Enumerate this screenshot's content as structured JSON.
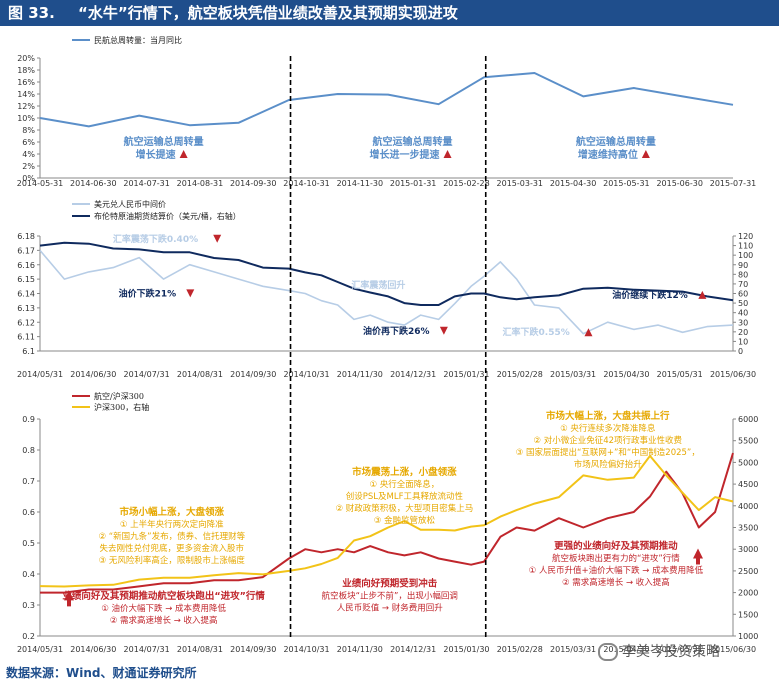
{
  "figure": {
    "number": "图 33.",
    "title": "“水牛”行情下，航空板块凭借业绩改善及其预期实现进攻",
    "source": "数据来源：Wind、财通证券研究所",
    "watermark": "李美岑投资策略"
  },
  "colors": {
    "title_bg": "#1f4e8c",
    "panel1_line": "#5b8fc9",
    "usdcny": "#b7cde6",
    "brent": "#0f2a5e",
    "airline_ratio": "#c0262c",
    "hs300": "#f2c318",
    "annotation_blue": "#5b8fc9",
    "annotation_red": "#c0262c",
    "annotation_gold": "#e6a800",
    "divider": "#000000"
  },
  "dividers": [
    "2014-11-01",
    "2015-03-01"
  ],
  "chart_data": [
    {
      "type": "line",
      "legend": [
        "民航总周转量：当月同比"
      ],
      "xlim": [
        "2014-05-31",
        "2015-07-31"
      ],
      "x_ticks": [
        "2014-05-31",
        "2014-06-30",
        "2014-07-31",
        "2014-08-31",
        "2014-09-30",
        "2014-10-31",
        "2014-11-30",
        "2015-01-31",
        "2015-02-28",
        "2015-03-31",
        "2015-04-30",
        "2015-05-31",
        "2015-06-30",
        "2015-07-31"
      ],
      "ylim": [
        0,
        20
      ],
      "y_ticks": [
        "0%",
        "2%",
        "4%",
        "6%",
        "8%",
        "10%",
        "12%",
        "14%",
        "16%",
        "18%",
        "20%"
      ],
      "series": [
        {
          "name": "民航总周转量：当月同比",
          "x": [
            "2014-05-31",
            "2014-06-30",
            "2014-07-31",
            "2014-08-31",
            "2014-09-30",
            "2014-10-31",
            "2014-11-30",
            "2014-12-31",
            "2015-01-31",
            "2015-02-28",
            "2015-03-31",
            "2015-04-30",
            "2015-05-31",
            "2015-06-30",
            "2015-07-31"
          ],
          "values": [
            10.0,
            8.6,
            10.4,
            8.8,
            9.2,
            13.0,
            14.0,
            13.9,
            12.3,
            16.8,
            17.5,
            13.6,
            15.0,
            13.6,
            12.2
          ]
        }
      ],
      "annotations": [
        {
          "text": "航空运输总周转量",
          "text2": "增长提速",
          "x": "2014-08-15",
          "y": 5.5
        },
        {
          "text": "航空运输总周转量",
          "text2": "增长进一步提速",
          "x": "2015-01-15",
          "y": 5.5
        },
        {
          "text": "航空运输总周转量",
          "text2": "增速维持高位",
          "x": "2015-05-20",
          "y": 5.5
        }
      ]
    },
    {
      "type": "line",
      "legend": [
        "美元兑人民币中间价",
        "布伦特原油期货结算价（美元/桶，右轴）"
      ],
      "xlim": [
        "2014-05-31",
        "2015-07-31"
      ],
      "x_ticks": [
        "2014/05/31",
        "2014/06/30",
        "2014/07/31",
        "2014/08/31",
        "2014/09/30",
        "2014/10/31",
        "2014/11/30",
        "2014/12/31",
        "2015/01/31",
        "2015/02/28",
        "2015/03/31",
        "2015/04/30",
        "2015/05/31",
        "2015/06/30"
      ],
      "ylim": [
        6.1,
        6.18
      ],
      "y_ticks": [
        "6.1",
        "6.11",
        "6.12",
        "6.13",
        "6.14",
        "6.15",
        "6.16",
        "6.17",
        "6.18"
      ],
      "y2lim": [
        0,
        120
      ],
      "y2_ticks": [
        "0",
        "10",
        "20",
        "30",
        "40",
        "50",
        "60",
        "70",
        "80",
        "90",
        "100",
        "110",
        "120"
      ],
      "series": [
        {
          "name": "美元兑人民币中间价",
          "axis": "left",
          "x": [
            "2014-05-31",
            "2014-06-15",
            "2014-06-30",
            "2014-07-15",
            "2014-07-31",
            "2014-08-15",
            "2014-08-31",
            "2014-09-15",
            "2014-09-30",
            "2014-10-15",
            "2014-10-31",
            "2014-11-10",
            "2014-11-20",
            "2014-11-30",
            "2014-12-10",
            "2014-12-20",
            "2014-12-31",
            "2015-01-10",
            "2015-01-20",
            "2015-01-31",
            "2015-02-10",
            "2015-02-20",
            "2015-02-28",
            "2015-03-10",
            "2015-03-20",
            "2015-03-31",
            "2015-04-15",
            "2015-04-30",
            "2015-05-15",
            "2015-05-31",
            "2015-06-15",
            "2015-06-30",
            "2015-07-15",
            "2015-07-31"
          ],
          "values": [
            6.17,
            6.15,
            6.155,
            6.158,
            6.165,
            6.15,
            6.16,
            6.155,
            6.15,
            6.145,
            6.142,
            6.14,
            6.135,
            6.132,
            6.122,
            6.125,
            6.12,
            6.118,
            6.125,
            6.122,
            6.133,
            6.145,
            6.152,
            6.162,
            6.15,
            6.132,
            6.13,
            6.112,
            6.12,
            6.115,
            6.118,
            6.113,
            6.117,
            6.118
          ]
        },
        {
          "name": "布伦特原油期货结算价（美元/桶，右轴）",
          "axis": "right",
          "x": [
            "2014-05-31",
            "2014-06-15",
            "2014-06-30",
            "2014-07-15",
            "2014-07-31",
            "2014-08-15",
            "2014-08-31",
            "2014-09-15",
            "2014-09-30",
            "2014-10-15",
            "2014-10-31",
            "2014-11-10",
            "2014-11-20",
            "2014-11-30",
            "2014-12-10",
            "2014-12-20",
            "2014-12-31",
            "2015-01-10",
            "2015-01-20",
            "2015-01-31",
            "2015-02-10",
            "2015-02-20",
            "2015-02-28",
            "2015-03-10",
            "2015-03-20",
            "2015-03-31",
            "2015-04-15",
            "2015-04-30",
            "2015-05-15",
            "2015-05-31",
            "2015-06-15",
            "2015-06-30",
            "2015-07-15",
            "2015-07-31"
          ],
          "values": [
            110,
            113,
            112,
            107,
            106,
            103,
            103,
            97,
            95,
            87,
            86,
            82,
            79,
            72,
            65,
            61,
            57,
            50,
            48,
            48,
            57,
            60,
            60,
            56,
            54,
            56,
            58,
            65,
            66,
            64,
            63,
            62,
            57,
            53
          ]
        }
      ],
      "annotations": [
        {
          "text": "汇率震荡下跌0.40%",
          "x": "2014-08-10",
          "y": 6.176,
          "color": "light",
          "arrow": "down"
        },
        {
          "text": "油价下跌21%",
          "x": "2014-08-05",
          "y": 6.138,
          "color": "dark",
          "arrow": "down"
        },
        {
          "text": "汇率震荡回升",
          "x": "2014-12-25",
          "y": 6.144,
          "color": "light",
          "arrow": "none"
        },
        {
          "text": "油价再下跌26%",
          "x": "2015-01-05",
          "y": 6.112,
          "color": "dark",
          "arrow": "down"
        },
        {
          "text": "油价继续下跌12%",
          "x": "2015-06-10",
          "y": 6.137,
          "color": "dark",
          "arrow": "up"
        },
        {
          "text": "汇率下跌0.55%",
          "x": "2015-04-01",
          "y": 6.111,
          "color": "light",
          "arrow": "up"
        }
      ]
    },
    {
      "type": "line",
      "legend": [
        "航空/沪深300",
        "沪深300，右轴"
      ],
      "xlim": [
        "2014-05-31",
        "2015-07-31"
      ],
      "x_ticks": [
        "2014/05/31",
        "2014/06/30",
        "2014/07/31",
        "2014/08/31",
        "2014/09/30",
        "2014/10/31",
        "2014/11/30",
        "2014/12/31",
        "2015/01/30",
        "2015/02/28",
        "2015/03/31",
        "2015/04/30",
        "2015/05/31",
        "2015/06/30"
      ],
      "ylim": [
        0.2,
        0.9
      ],
      "y_ticks": [
        "0.2",
        "0.3",
        "0.4",
        "0.5",
        "0.6",
        "0.7",
        "0.8",
        "0.9"
      ],
      "y2lim": [
        1000,
        6000
      ],
      "y2_ticks": [
        "1000",
        "1500",
        "2000",
        "2500",
        "3000",
        "3500",
        "4000",
        "4500",
        "5000",
        "5500",
        "6000"
      ],
      "series": [
        {
          "name": "航空/沪深300",
          "axis": "left",
          "x": [
            "2014-05-31",
            "2014-06-15",
            "2014-06-30",
            "2014-07-15",
            "2014-07-31",
            "2014-08-15",
            "2014-08-31",
            "2014-09-15",
            "2014-09-30",
            "2014-10-15",
            "2014-10-31",
            "2014-11-10",
            "2014-11-20",
            "2014-11-30",
            "2014-12-10",
            "2014-12-20",
            "2014-12-31",
            "2015-01-10",
            "2015-01-20",
            "2015-01-31",
            "2015-02-10",
            "2015-02-20",
            "2015-02-28",
            "2015-03-10",
            "2015-03-20",
            "2015-03-31",
            "2015-04-15",
            "2015-04-30",
            "2015-05-15",
            "2015-05-31",
            "2015-06-10",
            "2015-06-20",
            "2015-06-30",
            "2015-07-10",
            "2015-07-20",
            "2015-07-31"
          ],
          "values": [
            0.34,
            0.34,
            0.35,
            0.35,
            0.36,
            0.37,
            0.37,
            0.38,
            0.38,
            0.39,
            0.45,
            0.48,
            0.47,
            0.48,
            0.47,
            0.49,
            0.47,
            0.46,
            0.47,
            0.45,
            0.44,
            0.43,
            0.44,
            0.52,
            0.55,
            0.54,
            0.58,
            0.55,
            0.58,
            0.6,
            0.65,
            0.73,
            0.66,
            0.55,
            0.6,
            0.79
          ]
        },
        {
          "name": "沪深300，右轴",
          "axis": "right",
          "x": [
            "2014-05-31",
            "2014-06-15",
            "2014-06-30",
            "2014-07-15",
            "2014-07-31",
            "2014-08-15",
            "2014-08-31",
            "2014-09-15",
            "2014-09-30",
            "2014-10-15",
            "2014-10-31",
            "2014-11-10",
            "2014-11-20",
            "2014-11-30",
            "2014-12-10",
            "2014-12-20",
            "2014-12-31",
            "2015-01-10",
            "2015-01-20",
            "2015-01-31",
            "2015-02-10",
            "2015-02-20",
            "2015-02-28",
            "2015-03-10",
            "2015-03-20",
            "2015-03-31",
            "2015-04-15",
            "2015-04-30",
            "2015-05-15",
            "2015-05-31",
            "2015-06-10",
            "2015-06-20",
            "2015-06-30",
            "2015-07-10",
            "2015-07-20",
            "2015-07-31"
          ],
          "values": [
            2150,
            2140,
            2165,
            2180,
            2300,
            2340,
            2340,
            2400,
            2450,
            2420,
            2500,
            2560,
            2660,
            2800,
            3200,
            3300,
            3500,
            3650,
            3450,
            3450,
            3430,
            3520,
            3550,
            3750,
            3900,
            4050,
            4200,
            4700,
            4600,
            4650,
            5150,
            4700,
            4300,
            3900,
            4200,
            4100
          ]
        }
      ],
      "annotations": [
        {
          "color": "gold",
          "x": "2014-08-20",
          "y": 0.59,
          "lines": [
            "市场小幅上涨，大盘领涨",
            "① 上半年央行两次定向降准",
            "② “新国九条”发布，债券、信托理财等",
            "失去刚性兑付兜底，更多资金流入股市",
            "③ 无风险利率高企，限制股市上涨幅度"
          ]
        },
        {
          "color": "gold",
          "x": "2015-01-10",
          "y": 0.72,
          "lines": [
            "市场震荡上涨，小盘领涨",
            "① 央行全面降息，",
            "创设PSL及MLF工具释放流动性",
            "② 财政政策积极，大型项目密集上马",
            "③ 金融监管放松"
          ]
        },
        {
          "color": "gold",
          "x": "2015-05-15",
          "y": 0.9,
          "lines": [
            "市场大幅上涨，大盘共振上行",
            "① 央行连续多次降准降息",
            "② 对小微企业免征42项行政事业性收费",
            "③ 国家层面提出“互联网+”和“中国制造2025”，",
            "市场风险偏好抬升"
          ]
        },
        {
          "color": "red",
          "x": "2014-08-15",
          "y": 0.32,
          "lines": [
            "业绩向好及其预期推动航空板块跑出“进攻”行情",
            "① 油价大幅下跌 → 成本费用降低",
            "② 需求高速增长 → 收入提高"
          ]
        },
        {
          "color": "red",
          "x": "2015-01-01",
          "y": 0.36,
          "lines": [
            "业绩向好预期受到冲击",
            "航空板块“止步不前”，出现小幅回调",
            "人民币贬值 → 财务费用回升"
          ]
        },
        {
          "color": "red",
          "x": "2015-05-20",
          "y": 0.48,
          "lines": [
            "更强的业绩向好及其预期推动",
            "航空板块跑出更有力的“进攻”行情",
            "① 人民币升值+油价大幅下跌 → 成本费用降低",
            "② 需求高速增长 → 收入提高"
          ]
        }
      ]
    }
  ]
}
